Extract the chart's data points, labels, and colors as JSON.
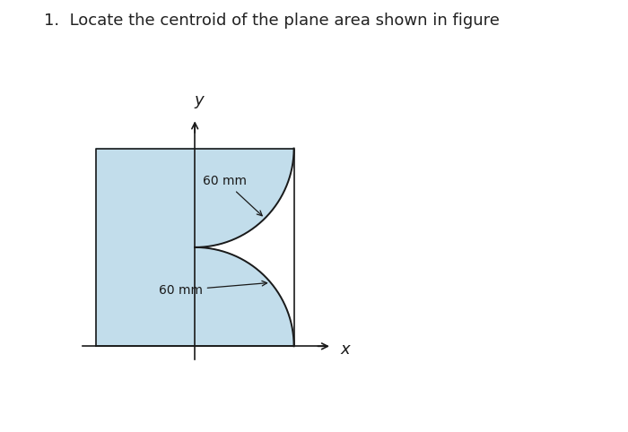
{
  "title": "1.  Locate the centroid of the plane area shown in figure",
  "title_fontsize": 13,
  "title_color": "#222222",
  "panel_bg": "#dcdcdc",
  "figure_bg": "#ffffff",
  "fill_color": "#b8d8e8",
  "fill_alpha": 0.85,
  "line_color": "#1a1a1a",
  "axis_color": "#1a1a1a",
  "label_bottom": "60 mm",
  "label_top": "60 mm",
  "R": 60
}
